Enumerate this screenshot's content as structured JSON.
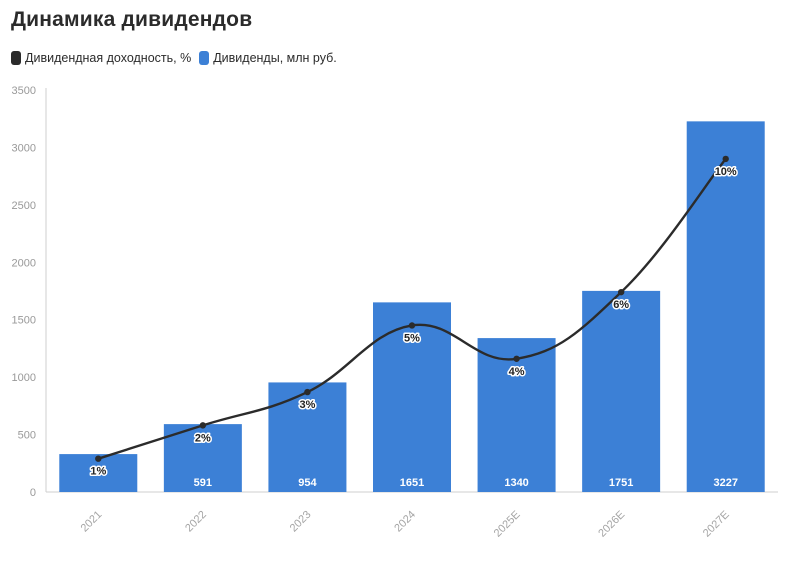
{
  "title": "Динамика дивидендов",
  "legend": {
    "yield_label": "Дивидендная доходность, %",
    "dividends_label": "Дивиденды, млн руб."
  },
  "colors": {
    "bar": "#3c80d6",
    "line": "#2b2b2b",
    "axis": "#cfcfcf"
  },
  "chart_data": {
    "type": "bar",
    "title": "Динамика дивидендов",
    "categories": [
      "2021",
      "2022",
      "2023",
      "2024",
      "2025E",
      "2026E",
      "2027E"
    ],
    "ylim": [
      0,
      3500
    ],
    "yticks": [
      0,
      500,
      1000,
      1500,
      2000,
      2500,
      3000,
      3500
    ],
    "grid": false,
    "legend_position": "top-left",
    "series": [
      {
        "name": "Дивиденды, млн руб.",
        "type": "bar",
        "values": [
          330,
          591,
          954,
          1651,
          1340,
          1751,
          3227
        ],
        "labels": [
          "",
          "591",
          "954",
          "1651",
          "1340",
          "1751",
          "3227"
        ]
      },
      {
        "name": "Дивидендная доходность, %",
        "type": "line",
        "values": [
          1,
          2,
          3,
          5,
          4,
          6,
          10
        ],
        "labels": [
          "1%",
          "2%",
          "3%",
          "5%",
          "4%",
          "6%",
          "10%"
        ]
      }
    ]
  }
}
